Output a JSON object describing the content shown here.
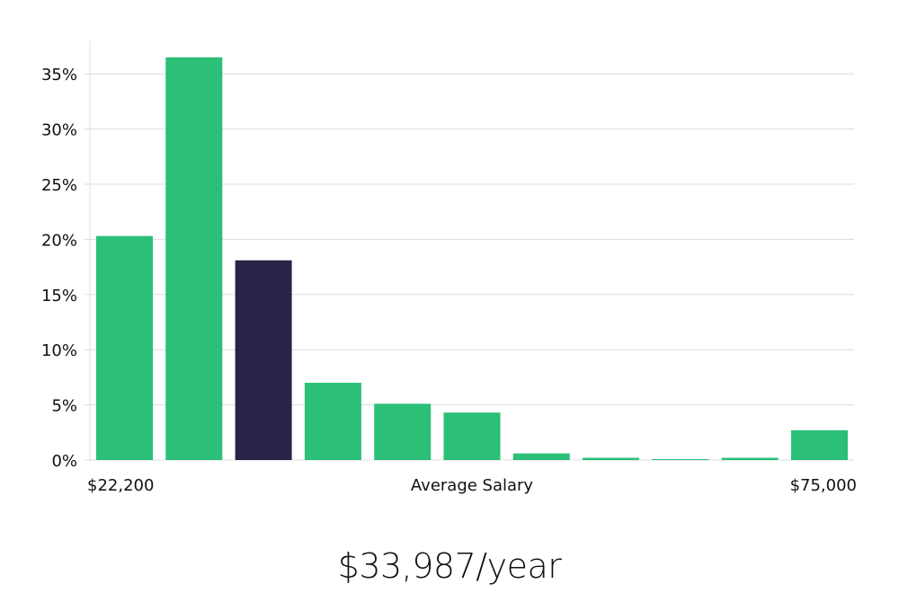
{
  "chart_data": {
    "type": "bar",
    "title": "",
    "xlabel": "Average Salary",
    "ylabel": "",
    "x_range_labels": {
      "min": "$22,200",
      "max": "$75,000"
    },
    "ylim": [
      0,
      38
    ],
    "y_ticks": [
      0,
      5,
      10,
      15,
      20,
      25,
      30,
      35
    ],
    "y_tick_suffix": "%",
    "grid": true,
    "values": [
      20.3,
      36.5,
      18.1,
      7.0,
      5.1,
      4.3,
      0.6,
      0.2,
      0.05,
      0.2,
      2.7
    ],
    "highlight_index": 2,
    "colors": {
      "bar": "#2bbf78",
      "highlight": "#272447",
      "grid": "#d9dce1",
      "axis": "#dddddd"
    }
  },
  "salary": {
    "text": "$33,987/year"
  }
}
